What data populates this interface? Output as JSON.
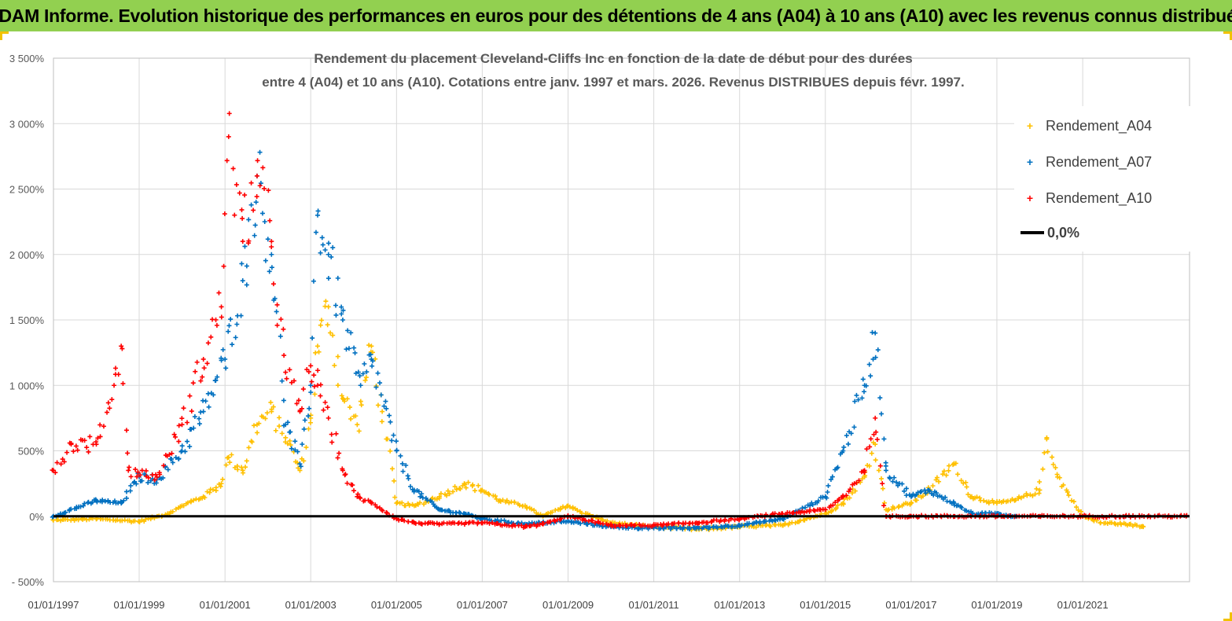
{
  "header": {
    "banner_title": "ADAM Informe. Evolution historique des performances en euros pour des détentions de 4 ans (A04) à 10 ans (A10) avec les revenus connus distribués"
  },
  "chart_data": {
    "type": "scatter",
    "title_line1": "Rendement du placement Cleveland-Cliffs Inc en fonction de la date de début pour des durées",
    "title_line2": "entre 4 (A04) et 10 ans (A10). Cotations entre janv. 1997 et mars. 2026. Revenus DISTRIBUES depuis févr. 1997.",
    "x_axis": {
      "type": "date",
      "min": "1997-01-01",
      "max": "2023-06-30",
      "tick_labels": [
        "01/01/1997",
        "01/01/1999",
        "01/01/2001",
        "01/01/2003",
        "01/01/2005",
        "01/01/2007",
        "01/01/2009",
        "01/01/2011",
        "01/01/2013",
        "01/01/2015",
        "01/01/2017",
        "01/01/2019",
        "01/01/2021"
      ]
    },
    "y_axis": {
      "unit": "%",
      "min": -500,
      "max": 3500,
      "step": 500,
      "tick_labels": [
        "- 500%",
        "0%",
        "500%",
        "1 000%",
        "1 500%",
        "2 000%",
        "2 500%",
        "3 000%",
        "3 500%"
      ]
    },
    "grid": "horizontal and vertical",
    "legend_position": "top-right",
    "series": [
      {
        "name": "Rendement_A04",
        "color": "#ffc000",
        "marker": "+",
        "points": [
          [
            "1997-01-01",
            -30
          ],
          [
            "1998-01-01",
            -20
          ],
          [
            "1999-01-01",
            -40
          ],
          [
            "1999-09-01",
            20
          ],
          [
            "2000-01-01",
            80
          ],
          [
            "2000-07-01",
            150
          ],
          [
            "2000-12-01",
            250
          ],
          [
            "2001-02-01",
            450
          ],
          [
            "2001-06-01",
            350
          ],
          [
            "2001-10-01",
            700
          ],
          [
            "2002-02-01",
            800
          ],
          [
            "2002-06-01",
            600
          ],
          [
            "2002-10-01",
            350
          ],
          [
            "2003-01-01",
            750
          ],
          [
            "2003-03-01",
            1300
          ],
          [
            "2003-06-01",
            1600
          ],
          [
            "2003-10-01",
            900
          ],
          [
            "2004-02-01",
            700
          ],
          [
            "2004-06-01",
            1300
          ],
          [
            "2004-09-01",
            800
          ],
          [
            "2005-01-01",
            100
          ],
          [
            "2005-06-01",
            80
          ],
          [
            "2006-01-01",
            150
          ],
          [
            "2006-08-01",
            250
          ],
          [
            "2007-01-01",
            200
          ],
          [
            "2007-06-01",
            120
          ],
          [
            "2008-01-01",
            80
          ],
          [
            "2008-06-01",
            0
          ],
          [
            "2009-01-01",
            80
          ],
          [
            "2009-06-01",
            20
          ],
          [
            "2010-01-01",
            -50
          ],
          [
            "2011-01-01",
            -80
          ],
          [
            "2012-01-01",
            -100
          ],
          [
            "2013-01-01",
            -80
          ],
          [
            "2014-01-01",
            -70
          ],
          [
            "2015-01-01",
            20
          ],
          [
            "2015-06-01",
            100
          ],
          [
            "2015-12-01",
            300
          ],
          [
            "2016-03-01",
            550
          ],
          [
            "2016-06-01",
            50
          ],
          [
            "2017-01-01",
            100
          ],
          [
            "2017-06-01",
            200
          ],
          [
            "2018-01-01",
            400
          ],
          [
            "2018-06-01",
            150
          ],
          [
            "2019-01-01",
            100
          ],
          [
            "2019-06-01",
            120
          ],
          [
            "2020-01-01",
            200
          ],
          [
            "2020-03-01",
            600
          ],
          [
            "2020-06-01",
            300
          ],
          [
            "2021-01-01",
            0
          ],
          [
            "2021-06-01",
            -50
          ],
          [
            "2022-01-01",
            -60
          ],
          [
            "2022-06-01",
            -80
          ]
        ]
      },
      {
        "name": "Rendement_A07",
        "color": "#0070c0",
        "marker": "+",
        "points": [
          [
            "1997-01-01",
            0
          ],
          [
            "1998-01-01",
            120
          ],
          [
            "1998-08-01",
            100
          ],
          [
            "1999-01-01",
            300
          ],
          [
            "1999-06-01",
            280
          ],
          [
            "2000-01-01",
            500
          ],
          [
            "2000-07-01",
            800
          ],
          [
            "2001-01-01",
            1200
          ],
          [
            "2001-06-01",
            1800
          ],
          [
            "2001-10-01",
            2600
          ],
          [
            "2002-02-01",
            2000
          ],
          [
            "2002-06-01",
            700
          ],
          [
            "2002-10-01",
            400
          ],
          [
            "2003-01-01",
            1000
          ],
          [
            "2003-03-01",
            2300
          ],
          [
            "2003-06-01",
            2000
          ],
          [
            "2003-10-01",
            1500
          ],
          [
            "2004-03-01",
            1000
          ],
          [
            "2004-06-01",
            1200
          ],
          [
            "2005-01-01",
            500
          ],
          [
            "2005-06-01",
            200
          ],
          [
            "2006-01-01",
            50
          ],
          [
            "2006-08-01",
            20
          ],
          [
            "2007-01-01",
            -20
          ],
          [
            "2008-01-01",
            -60
          ],
          [
            "2008-06-01",
            -50
          ],
          [
            "2009-01-01",
            -40
          ],
          [
            "2010-01-01",
            -80
          ],
          [
            "2011-01-01",
            -90
          ],
          [
            "2012-01-01",
            -90
          ],
          [
            "2013-01-01",
            -70
          ],
          [
            "2014-01-01",
            -20
          ],
          [
            "2015-01-01",
            150
          ],
          [
            "2015-06-01",
            500
          ],
          [
            "2015-12-01",
            1000
          ],
          [
            "2016-03-01",
            1400
          ],
          [
            "2016-06-01",
            350
          ],
          [
            "2017-01-01",
            150
          ],
          [
            "2017-06-01",
            200
          ],
          [
            "2018-01-01",
            100
          ],
          [
            "2018-06-01",
            20
          ],
          [
            "2019-01-01",
            20
          ],
          [
            "2019-06-01",
            0
          ]
        ]
      },
      {
        "name": "Rendement_A10",
        "color": "#ff0000",
        "marker": "+",
        "points": [
          [
            "1997-01-01",
            350
          ],
          [
            "1997-06-01",
            550
          ],
          [
            "1998-01-01",
            550
          ],
          [
            "1998-06-01",
            1000
          ],
          [
            "1998-08-01",
            1300
          ],
          [
            "1998-10-01",
            350
          ],
          [
            "1999-06-01",
            300
          ],
          [
            "2000-01-01",
            700
          ],
          [
            "2000-07-01",
            1200
          ],
          [
            "2000-12-01",
            1600
          ],
          [
            "2001-02-01",
            2900
          ],
          [
            "2001-06-01",
            2100
          ],
          [
            "2001-10-01",
            2600
          ],
          [
            "2002-02-01",
            2100
          ],
          [
            "2002-06-01",
            1100
          ],
          [
            "2002-10-01",
            800
          ],
          [
            "2003-01-01",
            1150
          ],
          [
            "2003-03-01",
            1000
          ],
          [
            "2003-06-01",
            750
          ],
          [
            "2003-10-01",
            350
          ],
          [
            "2004-02-01",
            150
          ],
          [
            "2004-06-01",
            100
          ],
          [
            "2005-01-01",
            -20
          ],
          [
            "2005-06-01",
            -50
          ],
          [
            "2006-01-01",
            -60
          ],
          [
            "2007-01-01",
            -50
          ],
          [
            "2008-01-01",
            -80
          ],
          [
            "2008-06-01",
            -60
          ],
          [
            "2009-01-01",
            0
          ],
          [
            "2010-01-01",
            -70
          ],
          [
            "2011-01-01",
            -70
          ],
          [
            "2012-01-01",
            -50
          ],
          [
            "2013-01-01",
            -20
          ],
          [
            "2014-01-01",
            20
          ],
          [
            "2015-01-01",
            50
          ],
          [
            "2015-06-01",
            150
          ],
          [
            "2015-12-01",
            350
          ],
          [
            "2016-03-01",
            750
          ],
          [
            "2016-06-01",
            0
          ],
          [
            "2017-01-01",
            0
          ],
          [
            "2018-01-01",
            0
          ],
          [
            "2019-01-01",
            0
          ],
          [
            "2020-01-01",
            0
          ],
          [
            "2021-01-01",
            0
          ],
          [
            "2022-01-01",
            0
          ],
          [
            "2023-06-01",
            0
          ]
        ]
      },
      {
        "name": "0,0%",
        "color": "#000000",
        "marker": "line",
        "points": [
          [
            "1997-01-01",
            0
          ],
          [
            "2023-06-30",
            0
          ]
        ]
      }
    ]
  },
  "legend": {
    "items": [
      "Rendement_A04",
      "Rendement_A07",
      "Rendement_A10",
      "0,0%"
    ]
  }
}
